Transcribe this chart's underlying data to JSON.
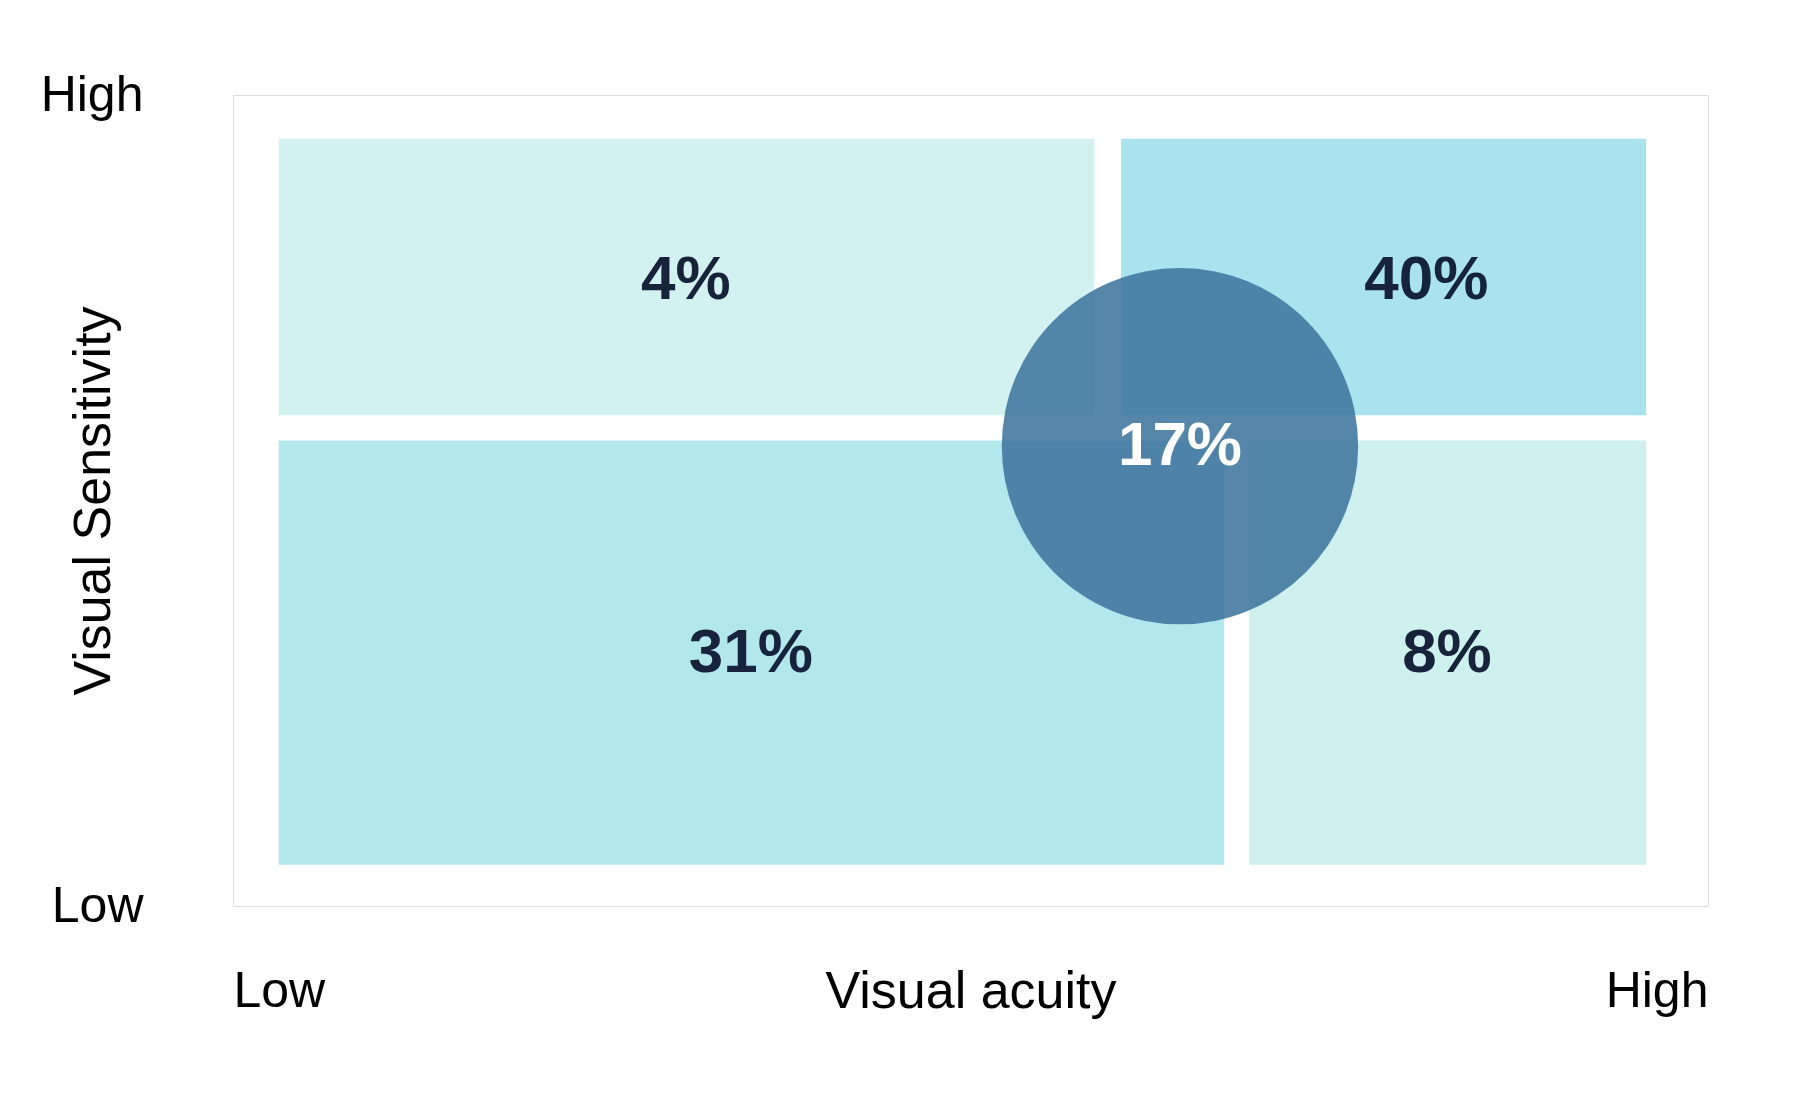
{
  "chart_data": {
    "type": "heatmap",
    "xlabel": "Visual acuity",
    "ylabel": "Visual Sensitivity",
    "categories": [
      "Low",
      "High"
    ],
    "y_categories": [
      "High",
      "Low"
    ],
    "cells": [
      [
        4,
        40
      ],
      [
        31,
        8
      ]
    ],
    "cell_labels": [
      [
        "4%",
        "40%"
      ],
      [
        "31%",
        "8%"
      ]
    ],
    "annotations": [
      "17%"
    ]
  }
}
